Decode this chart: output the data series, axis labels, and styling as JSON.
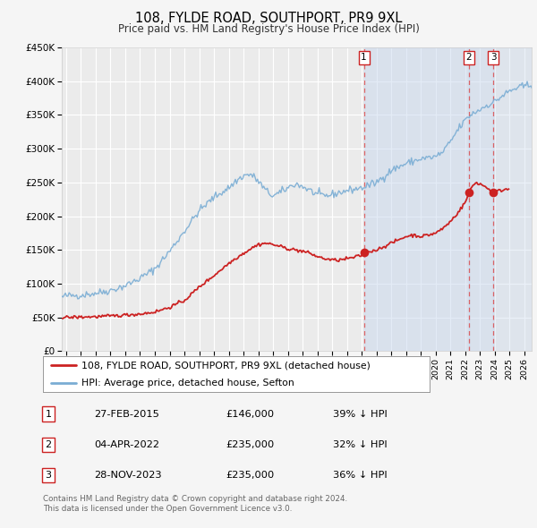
{
  "title": "108, FYLDE ROAD, SOUTHPORT, PR9 9XL",
  "subtitle": "Price paid vs. HM Land Registry's House Price Index (HPI)",
  "ylim": [
    0,
    450000
  ],
  "yticks": [
    0,
    50000,
    100000,
    150000,
    200000,
    250000,
    300000,
    350000,
    400000,
    450000
  ],
  "ytick_labels": [
    "£0",
    "£50K",
    "£100K",
    "£150K",
    "£200K",
    "£250K",
    "£300K",
    "£350K",
    "£400K",
    "£450K"
  ],
  "xlim_start": 1994.7,
  "xlim_end": 2026.5,
  "xticks": [
    1995,
    1996,
    1997,
    1998,
    1999,
    2000,
    2001,
    2002,
    2003,
    2004,
    2005,
    2006,
    2007,
    2008,
    2009,
    2010,
    2011,
    2012,
    2013,
    2014,
    2015,
    2016,
    2017,
    2018,
    2019,
    2020,
    2021,
    2022,
    2023,
    2024,
    2025,
    2026
  ],
  "background_color": "#f5f5f5",
  "plot_bg_color": "#ebebeb",
  "grid_color": "#ffffff",
  "hpi_color": "#7aadd4",
  "price_color": "#cc2222",
  "sale_marker_color": "#cc2222",
  "sale_marker_size": 7,
  "transaction_vline_color": "#dd4444",
  "legend_label_price": "108, FYLDE ROAD, SOUTHPORT, PR9 9XL (detached house)",
  "legend_label_hpi": "HPI: Average price, detached house, Sefton",
  "transactions": [
    {
      "num": 1,
      "date": 2015.15,
      "price": 146000,
      "label": "27-FEB-2015",
      "amount": "£146,000",
      "hpi_pct": "39% ↓ HPI"
    },
    {
      "num": 2,
      "date": 2022.26,
      "price": 235000,
      "label": "04-APR-2022",
      "amount": "£235,000",
      "hpi_pct": "32% ↓ HPI"
    },
    {
      "num": 3,
      "date": 2023.91,
      "price": 235000,
      "label": "28-NOV-2023",
      "amount": "£235,000",
      "hpi_pct": "36% ↓ HPI"
    }
  ],
  "footnote": "Contains HM Land Registry data © Crown copyright and database right 2024.\nThis data is licensed under the Open Government Licence v3.0.",
  "shade_color": "#c8d8ee",
  "shade_alpha": 0.5
}
